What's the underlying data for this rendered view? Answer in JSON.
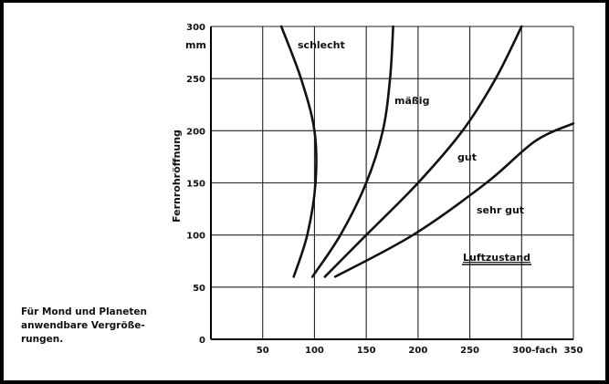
{
  "chart_data": {
    "type": "line",
    "title": "",
    "xlabel": "",
    "ylabel": "Fernrohröffnung",
    "y_unit_label": "mm",
    "x_last_tick_label": "300-fach",
    "xlim": [
      0,
      350
    ],
    "ylim": [
      0,
      300
    ],
    "x_ticks": [
      50,
      100,
      150,
      200,
      250,
      300,
      350
    ],
    "y_ticks": [
      0,
      50,
      100,
      150,
      200,
      250,
      300
    ],
    "grid": true,
    "legend_title": "Luftzustand",
    "series": [
      {
        "name": "schlecht",
        "points": [
          [
            80,
            60
          ],
          [
            93,
            100
          ],
          [
            101,
            150
          ],
          [
            100,
            200
          ],
          [
            87,
            250
          ],
          [
            68,
            300
          ]
        ]
      },
      {
        "name": "mäßig",
        "points": [
          [
            98,
            60
          ],
          [
            125,
            100
          ],
          [
            150,
            150
          ],
          [
            166,
            200
          ],
          [
            173,
            250
          ],
          [
            176,
            300
          ]
        ]
      },
      {
        "name": "gut",
        "points": [
          [
            110,
            60
          ],
          [
            150,
            100
          ],
          [
            200,
            150
          ],
          [
            243,
            200
          ],
          [
            275,
            250
          ],
          [
            300,
            300
          ]
        ]
      },
      {
        "name": "sehr gut",
        "points": [
          [
            120,
            60
          ],
          [
            195,
            100
          ],
          [
            266,
            150
          ],
          [
            313,
            190
          ],
          [
            350,
            207
          ]
        ]
      }
    ]
  },
  "caption": [
    "Für Mond und Planeten",
    "anwendbare Vergröße-",
    "rungen."
  ]
}
